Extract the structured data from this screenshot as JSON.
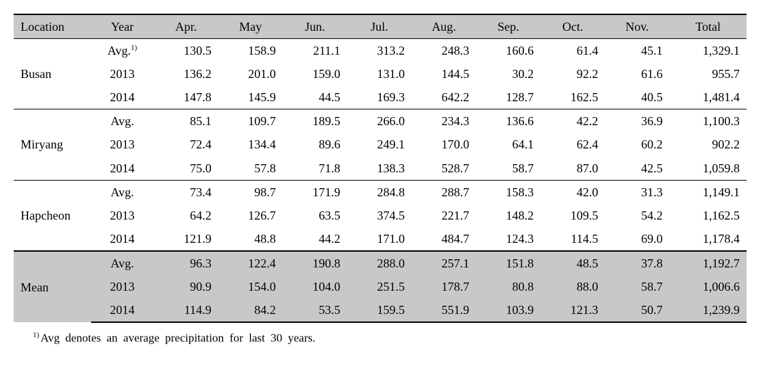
{
  "colors": {
    "header_bg": "#c7c8ca",
    "row_bg": "#c7c8ca",
    "text": "#000000",
    "rule": "#000000",
    "page_bg": "#ffffff"
  },
  "columns": {
    "location": "Location",
    "year": "Year",
    "months": [
      "Apr.",
      "May",
      "Jun.",
      "Jul.",
      "Aug.",
      "Sep.",
      "Oct.",
      "Nov."
    ],
    "total": "Total"
  },
  "avg_sup": "1)",
  "rows": [
    {
      "location": "Busan",
      "shaded": false,
      "data": [
        {
          "year": "Avg.",
          "sup": "1)",
          "v": [
            "130.5",
            "158.9",
            "211.1",
            "313.2",
            "248.3",
            "160.6",
            "61.4",
            "45.1"
          ],
          "total": "1,329.1"
        },
        {
          "year": "2013",
          "v": [
            "136.2",
            "201.0",
            "159.0",
            "131.0",
            "144.5",
            "30.2",
            "92.2",
            "61.6"
          ],
          "total": "955.7"
        },
        {
          "year": "2014",
          "v": [
            "147.8",
            "145.9",
            "44.5",
            "169.3",
            "642.2",
            "128.7",
            "162.5",
            "40.5"
          ],
          "total": "1,481.4"
        }
      ]
    },
    {
      "location": "Miryang",
      "shaded": false,
      "data": [
        {
          "year": "Avg.",
          "v": [
            "85.1",
            "109.7",
            "189.5",
            "266.0",
            "234.3",
            "136.6",
            "42.2",
            "36.9"
          ],
          "total": "1,100.3"
        },
        {
          "year": "2013",
          "v": [
            "72.4",
            "134.4",
            "89.6",
            "249.1",
            "170.0",
            "64.1",
            "62.4",
            "60.2"
          ],
          "total": "902.2"
        },
        {
          "year": "2014",
          "v": [
            "75.0",
            "57.8",
            "71.8",
            "138.3",
            "528.7",
            "58.7",
            "87.0",
            "42.5"
          ],
          "total": "1,059.8"
        }
      ]
    },
    {
      "location": "Hapcheon",
      "shaded": false,
      "data": [
        {
          "year": "Avg.",
          "v": [
            "73.4",
            "98.7",
            "171.9",
            "284.8",
            "288.7",
            "158.3",
            "42.0",
            "31.3"
          ],
          "total": "1,149.1"
        },
        {
          "year": "2013",
          "v": [
            "64.2",
            "126.7",
            "63.5",
            "374.5",
            "221.7",
            "148.2",
            "109.5",
            "54.2"
          ],
          "total": "1,162.5"
        },
        {
          "year": "2014",
          "v": [
            "121.9",
            "48.8",
            "44.2",
            "171.0",
            "484.7",
            "124.3",
            "114.5",
            "69.0"
          ],
          "total": "1,178.4"
        }
      ]
    },
    {
      "location": "Mean",
      "shaded": true,
      "data": [
        {
          "year": "Avg.",
          "v": [
            "96.3",
            "122.4",
            "190.8",
            "288.0",
            "257.1",
            "151.8",
            "48.5",
            "37.8"
          ],
          "total": "1,192.7"
        },
        {
          "year": "2013",
          "v": [
            "90.9",
            "154.0",
            "104.0",
            "251.5",
            "178.7",
            "80.8",
            "88.0",
            "58.7"
          ],
          "total": "1,006.6"
        },
        {
          "year": "2014",
          "v": [
            "114.9",
            "84.2",
            "53.5",
            "159.5",
            "551.9",
            "103.9",
            "121.3",
            "50.7"
          ],
          "total": "1,239.9"
        }
      ]
    }
  ],
  "footnote": {
    "sup": "1)",
    "text": "Avg denotes an average precipitation for last 30 years."
  }
}
